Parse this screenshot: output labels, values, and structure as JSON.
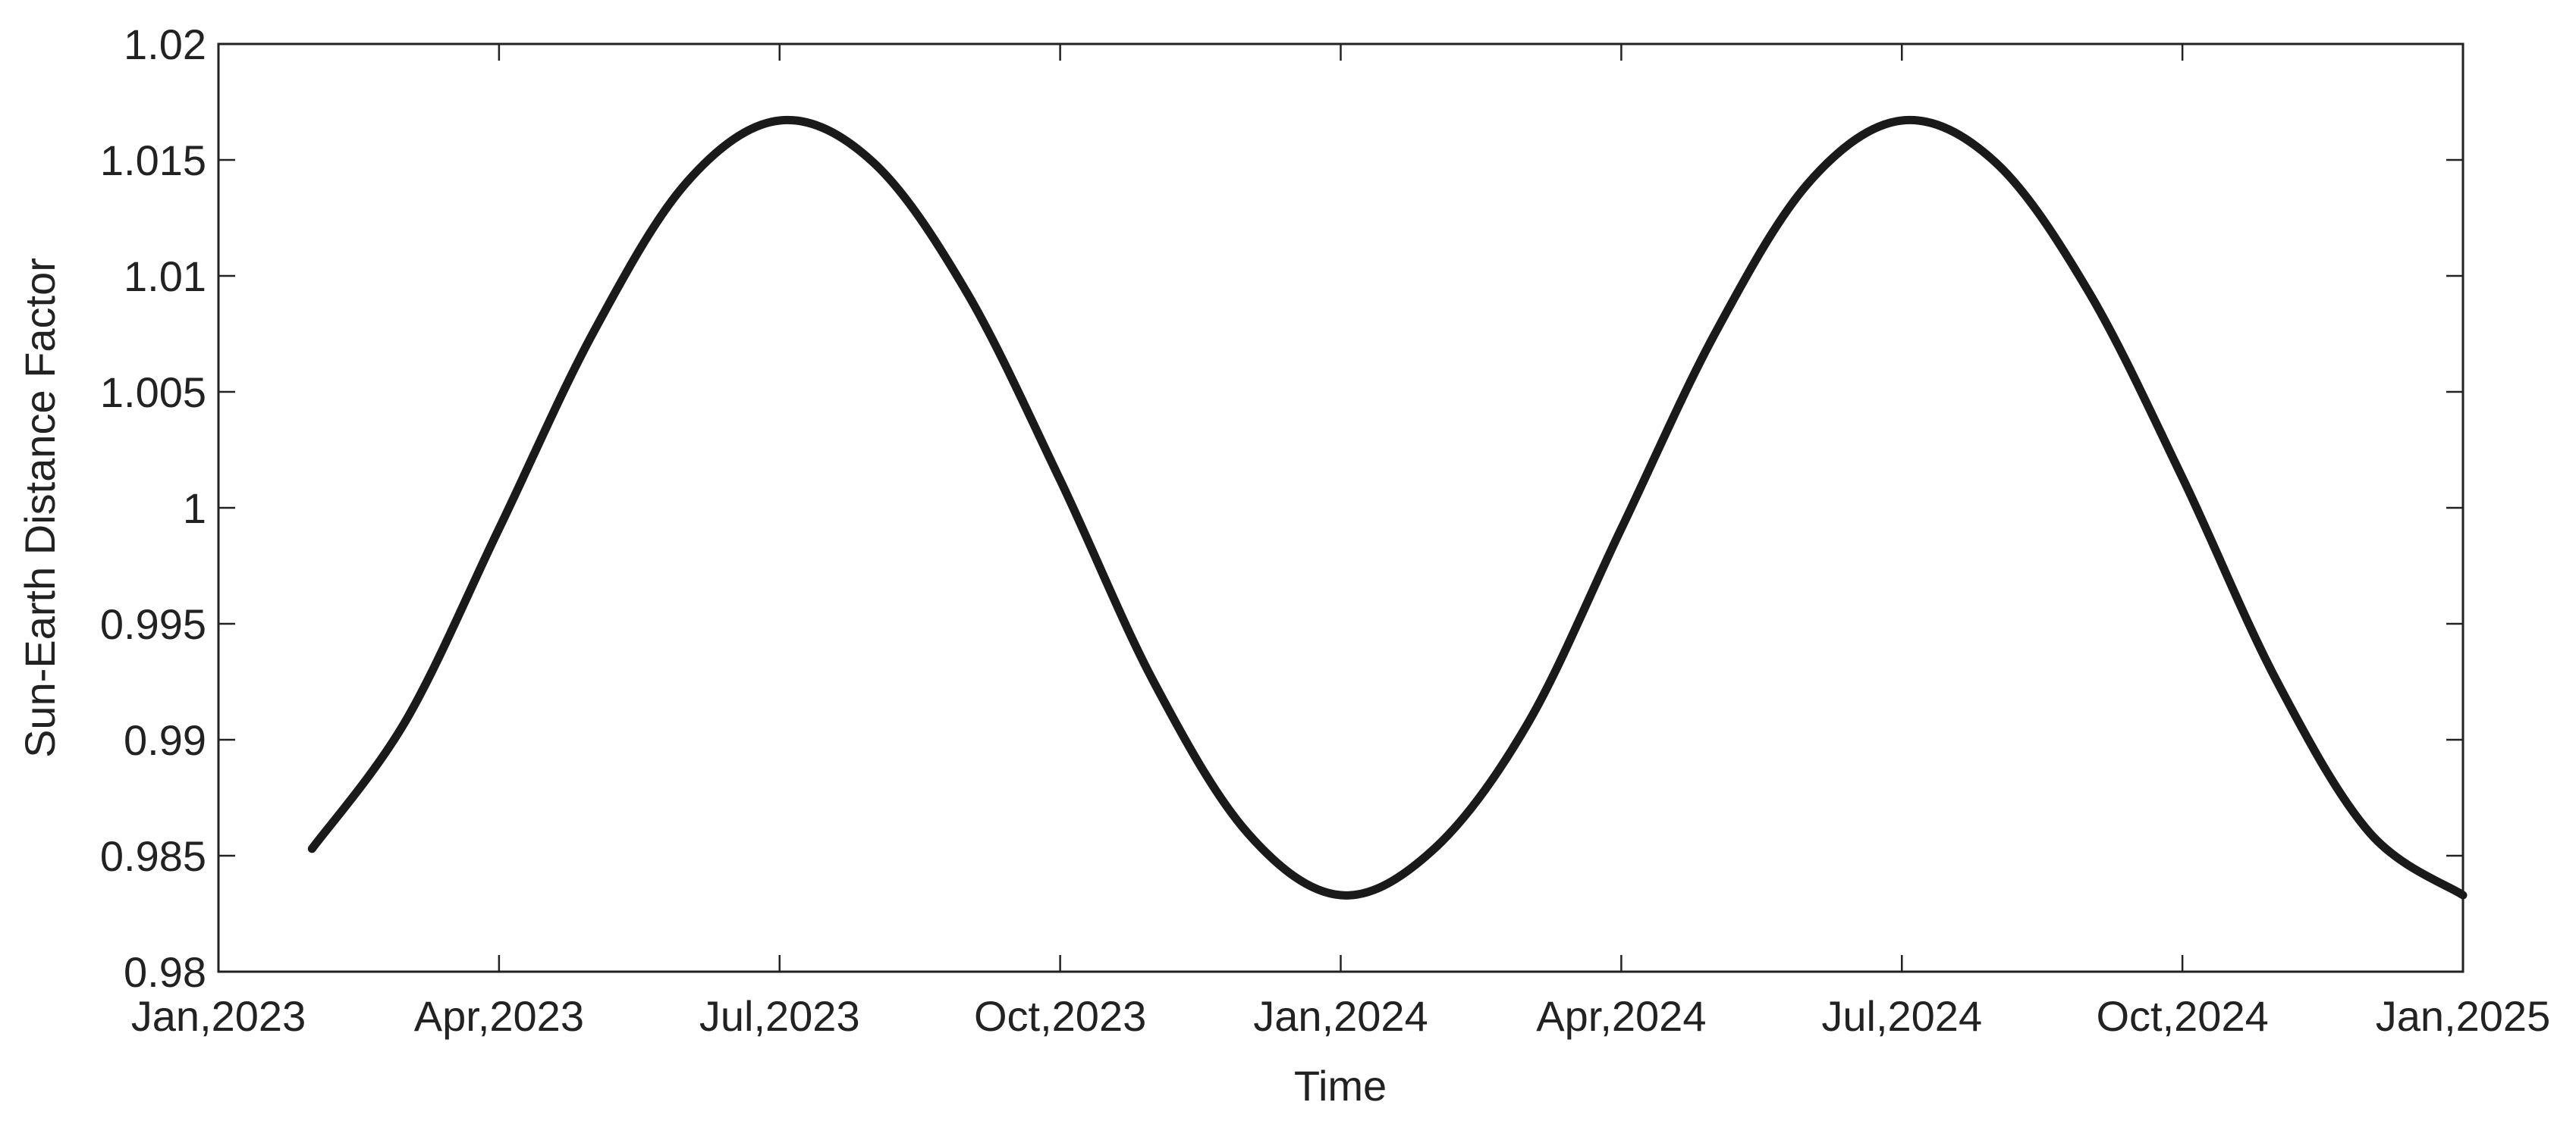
{
  "chart_data": {
    "type": "line",
    "x_label": "Time",
    "y_label": "Sun-Earth Distance Factor",
    "x": [
      "2023-02",
      "2023-03",
      "2023-04",
      "2023-05",
      "2023-06",
      "2023-07",
      "2023-08",
      "2023-09",
      "2023-10",
      "2023-11",
      "2023-12",
      "2024-01",
      "2024-02",
      "2024-03",
      "2024-04",
      "2024-05",
      "2024-06",
      "2024-07",
      "2024-08",
      "2024-09",
      "2024-10",
      "2024-11",
      "2024-12",
      "2025-01"
    ],
    "series": [
      {
        "color": "#1a1a1a",
        "values": [
          0.9853,
          0.9908,
          0.9991,
          1.0075,
          1.014,
          1.0167,
          1.0149,
          1.0093,
          1.0012,
          0.9925,
          0.986,
          0.9833,
          0.9853,
          0.9907,
          0.9991,
          1.0075,
          1.014,
          1.0167,
          1.0149,
          1.0093,
          1.0013,
          0.9926,
          0.986,
          0.9833
        ]
      }
    ],
    "xlim": [
      "2023-01",
      "2025-01"
    ],
    "xticks": [
      {
        "value": "2023-01",
        "label": "Jan,2023"
      },
      {
        "value": "2023-04",
        "label": "Apr,2023"
      },
      {
        "value": "2023-07",
        "label": "Jul,2023"
      },
      {
        "value": "2023-10",
        "label": "Oct,2023"
      },
      {
        "value": "2024-01",
        "label": "Jan,2024"
      },
      {
        "value": "2024-04",
        "label": "Apr,2024"
      },
      {
        "value": "2024-07",
        "label": "Jul,2024"
      },
      {
        "value": "2024-10",
        "label": "Oct,2024"
      },
      {
        "value": "2025-01",
        "label": "Jan,2025"
      }
    ],
    "ylim": [
      0.98,
      1.02
    ],
    "yticks": [
      0.98,
      0.985,
      0.99,
      0.995,
      1,
      1.005,
      1.01,
      1.015,
      1.02
    ],
    "grid": false
  }
}
